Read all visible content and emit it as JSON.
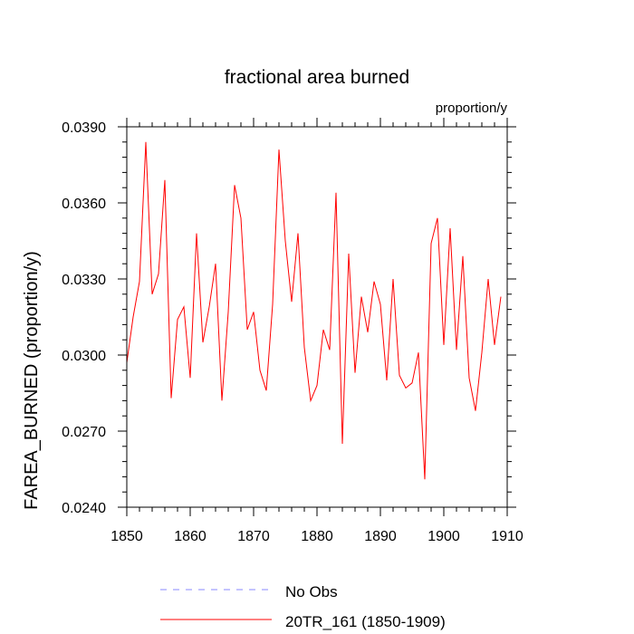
{
  "chart_data": {
    "type": "line",
    "title": "fractional area burned",
    "units": "proportion/y",
    "ylabel": "FAREA_BURNED  (proportion/y)",
    "xlabel": "",
    "xlim": [
      1850,
      1910
    ],
    "ylim": [
      0.024,
      0.039
    ],
    "x_ticks": [
      1850,
      1860,
      1870,
      1880,
      1890,
      1900,
      1910
    ],
    "y_ticks": [
      0.024,
      0.027,
      0.03,
      0.033,
      0.036,
      0.039
    ],
    "y_tick_labels": [
      "0.0240",
      "0.0270",
      "0.0300",
      "0.0330",
      "0.0360",
      "0.0390"
    ],
    "grid": false,
    "legend_position": "bottom",
    "legend": [
      {
        "label": "No Obs",
        "color": "#8888ff",
        "style": "dashed"
      },
      {
        "label": "20TR_161 (1850-1909)",
        "color": "#ff0000",
        "style": "solid"
      }
    ],
    "series": [
      {
        "name": "20TR_161 (1850-1909)",
        "color": "#ff0000",
        "x": [
          1850,
          1851,
          1852,
          1853,
          1854,
          1855,
          1856,
          1857,
          1858,
          1859,
          1860,
          1861,
          1862,
          1863,
          1864,
          1865,
          1866,
          1867,
          1868,
          1869,
          1870,
          1871,
          1872,
          1873,
          1874,
          1875,
          1876,
          1877,
          1878,
          1879,
          1880,
          1881,
          1882,
          1883,
          1884,
          1885,
          1886,
          1887,
          1888,
          1889,
          1890,
          1891,
          1892,
          1893,
          1894,
          1895,
          1896,
          1897,
          1898,
          1899,
          1900,
          1901,
          1902,
          1903,
          1904,
          1905,
          1906,
          1907,
          1908,
          1909
        ],
        "values": [
          0.0297,
          0.0315,
          0.0329,
          0.0384,
          0.0324,
          0.0332,
          0.0369,
          0.0283,
          0.0314,
          0.0319,
          0.0291,
          0.0348,
          0.0305,
          0.0319,
          0.0336,
          0.0282,
          0.0317,
          0.0367,
          0.0354,
          0.031,
          0.0317,
          0.0294,
          0.0286,
          0.032,
          0.0381,
          0.0345,
          0.0321,
          0.0348,
          0.0303,
          0.0282,
          0.0288,
          0.031,
          0.0302,
          0.0364,
          0.0265,
          0.034,
          0.0293,
          0.0323,
          0.0309,
          0.0329,
          0.032,
          0.029,
          0.033,
          0.0292,
          0.0287,
          0.0289,
          0.0301,
          0.0251,
          0.0344,
          0.0354,
          0.0304,
          0.035,
          0.0302,
          0.0339,
          0.0291,
          0.0278,
          0.0301,
          0.033,
          0.0304,
          0.0323
        ]
      }
    ]
  }
}
